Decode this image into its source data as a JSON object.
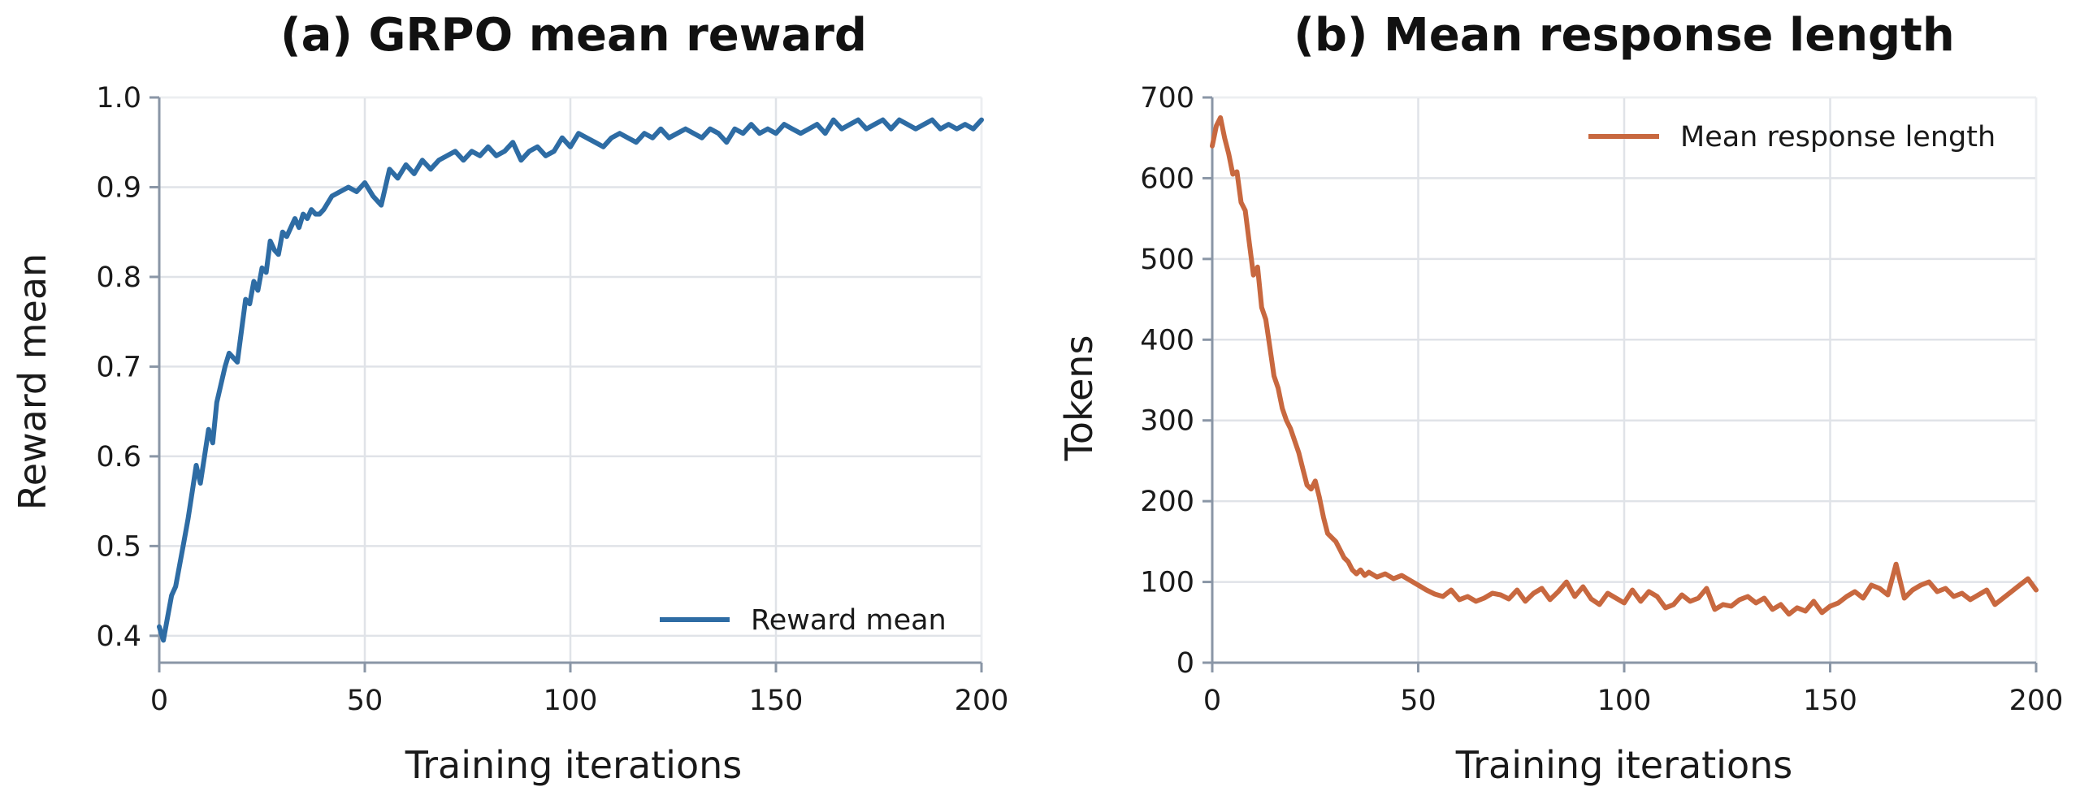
{
  "chart_data": [
    {
      "type": "line",
      "title": "(a) GRPO mean reward",
      "xlabel": "Training iterations",
      "ylabel": "Reward mean",
      "xlim": [
        0,
        200
      ],
      "ylim": [
        0.37,
        1.0
      ],
      "xticks": [
        0,
        50,
        100,
        150,
        200
      ],
      "yticks": [
        0.4,
        0.5,
        0.6,
        0.7,
        0.8,
        0.9,
        1.0
      ],
      "xtick_labels": [
        "0",
        "50",
        "100",
        "150",
        "200"
      ],
      "ytick_labels": [
        "0.4",
        "0.5",
        "0.6",
        "0.7",
        "0.8",
        "0.9",
        "1.0"
      ],
      "grid": true,
      "legend_position": "lower-right",
      "series": [
        {
          "name": "Reward mean",
          "color": "#2e6ca4",
          "x": [
            0,
            1,
            2,
            3,
            4,
            5,
            6,
            7,
            8,
            9,
            10,
            11,
            12,
            13,
            14,
            15,
            16,
            17,
            18,
            19,
            20,
            21,
            22,
            23,
            24,
            25,
            26,
            27,
            28,
            29,
            30,
            31,
            32,
            33,
            34,
            35,
            36,
            37,
            38,
            39,
            40,
            42,
            44,
            46,
            48,
            50,
            52,
            54,
            55,
            56,
            58,
            60,
            62,
            64,
            66,
            68,
            70,
            72,
            74,
            76,
            78,
            80,
            82,
            84,
            86,
            88,
            90,
            92,
            94,
            96,
            98,
            100,
            102,
            104,
            106,
            108,
            110,
            112,
            114,
            116,
            118,
            120,
            122,
            124,
            126,
            128,
            130,
            132,
            134,
            136,
            138,
            140,
            142,
            144,
            146,
            148,
            150,
            152,
            154,
            156,
            158,
            160,
            162,
            164,
            166,
            168,
            170,
            172,
            174,
            176,
            178,
            180,
            182,
            184,
            186,
            188,
            190,
            192,
            194,
            196,
            198,
            200
          ],
          "values": [
            0.41,
            0.395,
            0.42,
            0.445,
            0.455,
            0.48,
            0.505,
            0.53,
            0.56,
            0.59,
            0.57,
            0.6,
            0.63,
            0.615,
            0.66,
            0.68,
            0.7,
            0.715,
            0.71,
            0.705,
            0.74,
            0.775,
            0.77,
            0.795,
            0.785,
            0.81,
            0.805,
            0.84,
            0.83,
            0.825,
            0.85,
            0.845,
            0.855,
            0.865,
            0.855,
            0.87,
            0.865,
            0.875,
            0.87,
            0.87,
            0.875,
            0.89,
            0.895,
            0.9,
            0.895,
            0.905,
            0.89,
            0.88,
            0.9,
            0.92,
            0.91,
            0.925,
            0.915,
            0.93,
            0.92,
            0.93,
            0.935,
            0.94,
            0.93,
            0.94,
            0.935,
            0.945,
            0.935,
            0.94,
            0.95,
            0.93,
            0.94,
            0.945,
            0.935,
            0.94,
            0.955,
            0.945,
            0.96,
            0.955,
            0.95,
            0.945,
            0.955,
            0.96,
            0.955,
            0.95,
            0.96,
            0.955,
            0.965,
            0.955,
            0.96,
            0.965,
            0.96,
            0.955,
            0.965,
            0.96,
            0.95,
            0.965,
            0.96,
            0.97,
            0.96,
            0.965,
            0.96,
            0.97,
            0.965,
            0.96,
            0.965,
            0.97,
            0.96,
            0.975,
            0.965,
            0.97,
            0.975,
            0.965,
            0.97,
            0.975,
            0.965,
            0.975,
            0.97,
            0.965,
            0.97,
            0.975,
            0.965,
            0.97,
            0.965,
            0.97,
            0.965,
            0.975
          ]
        }
      ]
    },
    {
      "type": "line",
      "title": "(b) Mean response length",
      "xlabel": "Training iterations",
      "ylabel": "Tokens",
      "xlim": [
        0,
        200
      ],
      "ylim": [
        0,
        700
      ],
      "xticks": [
        0,
        50,
        100,
        150,
        200
      ],
      "yticks": [
        0,
        100,
        200,
        300,
        400,
        500,
        600,
        700
      ],
      "xtick_labels": [
        "0",
        "50",
        "100",
        "150",
        "200"
      ],
      "ytick_labels": [
        "0",
        "100",
        "200",
        "300",
        "400",
        "500",
        "600",
        "700"
      ],
      "grid": true,
      "legend_position": "upper-right",
      "series": [
        {
          "name": "Mean response length",
          "color": "#c8683f",
          "x": [
            0,
            1,
            2,
            3,
            4,
            5,
            6,
            7,
            8,
            9,
            10,
            11,
            12,
            13,
            14,
            15,
            16,
            17,
            18,
            19,
            20,
            21,
            22,
            23,
            24,
            25,
            26,
            27,
            28,
            29,
            30,
            31,
            32,
            33,
            34,
            35,
            36,
            37,
            38,
            40,
            42,
            44,
            46,
            48,
            50,
            52,
            54,
            56,
            58,
            60,
            62,
            64,
            66,
            68,
            70,
            72,
            74,
            76,
            78,
            80,
            82,
            84,
            86,
            88,
            90,
            92,
            94,
            96,
            98,
            100,
            102,
            104,
            106,
            108,
            110,
            112,
            114,
            116,
            118,
            120,
            122,
            124,
            126,
            128,
            130,
            132,
            134,
            136,
            138,
            140,
            142,
            144,
            146,
            148,
            150,
            152,
            154,
            156,
            158,
            160,
            162,
            164,
            166,
            168,
            170,
            172,
            174,
            176,
            178,
            180,
            182,
            184,
            186,
            188,
            190,
            192,
            194,
            196,
            198,
            200
          ],
          "values": [
            640,
            665,
            675,
            650,
            630,
            605,
            608,
            570,
            560,
            520,
            480,
            490,
            440,
            425,
            390,
            355,
            340,
            315,
            300,
            290,
            275,
            260,
            240,
            220,
            215,
            225,
            205,
            180,
            160,
            155,
            150,
            140,
            130,
            125,
            115,
            110,
            115,
            108,
            112,
            106,
            110,
            104,
            108,
            102,
            96,
            90,
            85,
            82,
            90,
            78,
            82,
            76,
            80,
            86,
            84,
            79,
            90,
            76,
            86,
            92,
            78,
            88,
            100,
            82,
            94,
            79,
            72,
            86,
            80,
            74,
            90,
            76,
            88,
            82,
            68,
            72,
            84,
            76,
            80,
            92,
            66,
            72,
            70,
            78,
            82,
            74,
            80,
            66,
            72,
            60,
            68,
            64,
            76,
            62,
            70,
            74,
            82,
            88,
            80,
            96,
            92,
            84,
            122,
            80,
            90,
            96,
            100,
            88,
            92,
            82,
            86,
            78,
            84,
            90,
            72,
            80,
            88,
            96,
            104,
            90
          ]
        }
      ]
    }
  ]
}
